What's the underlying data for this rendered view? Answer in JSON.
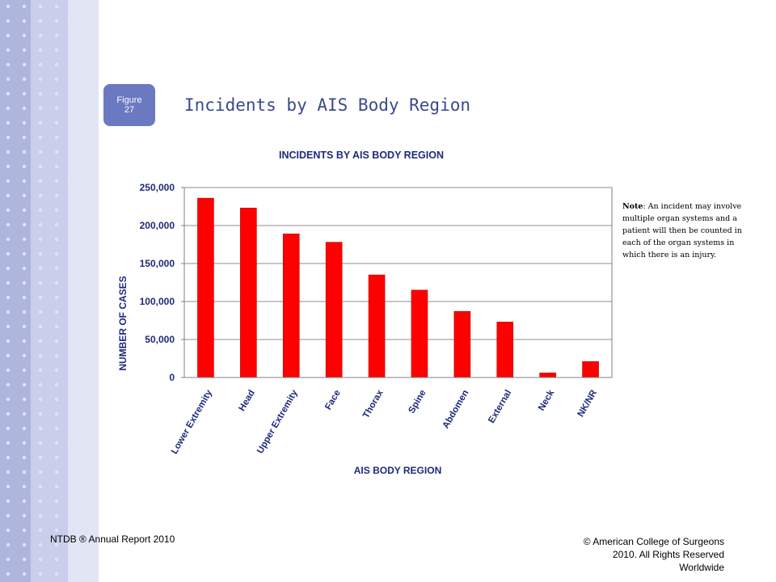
{
  "badge": {
    "line1": "Figure",
    "line2": "27"
  },
  "page_title": "Incidents by AIS Body Region",
  "note": {
    "label": "Note",
    "text": ": An incident may involve multiple organ systems and a patient will then be counted in each of the organ systems in which there is an injury."
  },
  "footer": {
    "left": "NTDB ® Annual Report 2010",
    "right": "© American College of Surgeons 2010. All Rights Reserved Worldwide"
  },
  "colors": {
    "bar": "#ff0000",
    "bar_stroke": "#c00000",
    "title": "#1f2a7a",
    "badge": "#6b79c2",
    "sidebar": "#aeb6dd"
  },
  "chart_data": {
    "type": "bar",
    "title": "INCIDENTS BY AIS BODY REGION",
    "xlabel": "AIS BODY REGION",
    "ylabel": "NUMBER OF CASES",
    "categories": [
      "Lower Extremity",
      "Head",
      "Upper Extremity",
      "Face",
      "Thorax",
      "Spine",
      "Abdomen",
      "External",
      "Neck",
      "NK/NR"
    ],
    "values": [
      236000,
      223000,
      189000,
      178000,
      135000,
      115000,
      87000,
      73000,
      6000,
      21000
    ],
    "ylim": [
      0,
      250000
    ],
    "yticks": [
      0,
      50000,
      100000,
      150000,
      200000,
      250000
    ],
    "ytick_labels": [
      "0",
      "50,000",
      "100,000",
      "150,000",
      "200,000",
      "250,000"
    ],
    "grid": true,
    "legend": "none"
  }
}
